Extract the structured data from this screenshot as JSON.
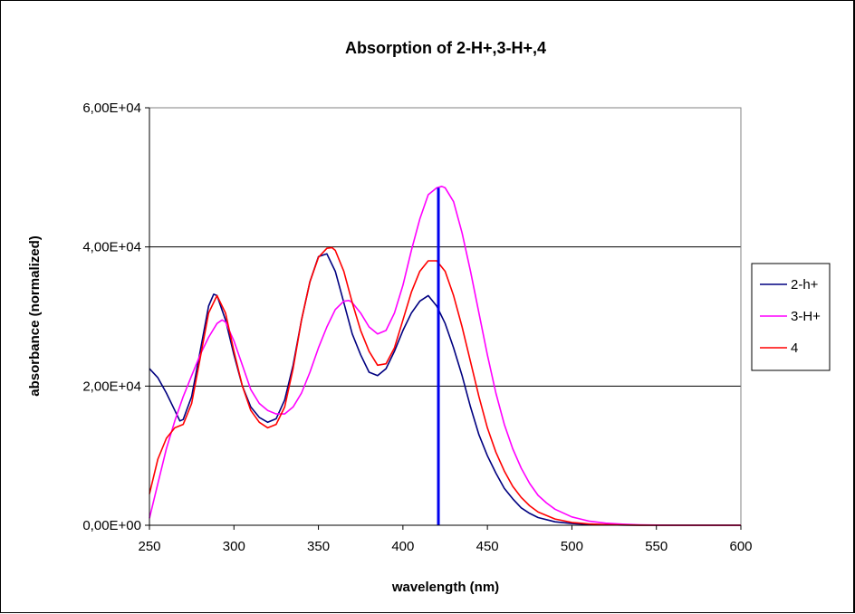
{
  "chart_data": {
    "type": "line",
    "title": "Absorption of 2-H+,3-H+,4",
    "xlabel": "wavelength (nm)",
    "ylabel": "absorbance (normalized)",
    "xlim": [
      250,
      600
    ],
    "ylim": [
      0,
      60000
    ],
    "xticks": [
      250,
      300,
      350,
      400,
      450,
      500,
      550,
      600
    ],
    "xtick_labels": [
      "250",
      "300",
      "350",
      "400",
      "450",
      "500",
      "550",
      "600"
    ],
    "yticks": [
      0,
      20000,
      40000,
      60000
    ],
    "ytick_labels": [
      "0,00E+00",
      "2,00E+04",
      "4,00E+04",
      "6,00E+04"
    ],
    "grid": "horizontal",
    "legend_position": "right",
    "marker_line": {
      "x": 421,
      "y_top": 48500,
      "color": "#0000ee"
    },
    "series": [
      {
        "name": "2-h+",
        "color": "#000080",
        "x": [
          250,
          255,
          260,
          265,
          268,
          270,
          275,
          280,
          285,
          288,
          290,
          295,
          300,
          305,
          310,
          315,
          320,
          325,
          330,
          335,
          340,
          345,
          350,
          355,
          360,
          365,
          370,
          375,
          380,
          385,
          390,
          395,
          400,
          405,
          410,
          415,
          420,
          425,
          430,
          435,
          440,
          445,
          450,
          455,
          460,
          465,
          470,
          475,
          480,
          490,
          500,
          510,
          520,
          530,
          540,
          550,
          600
        ],
        "y": [
          22500,
          21200,
          19000,
          16500,
          15000,
          15200,
          18500,
          25000,
          31500,
          33200,
          33000,
          29500,
          24500,
          20000,
          17000,
          15500,
          14800,
          15300,
          18000,
          23000,
          29500,
          35000,
          38600,
          39000,
          36500,
          32000,
          27500,
          24500,
          22000,
          21500,
          22500,
          25000,
          28000,
          30500,
          32200,
          33000,
          31500,
          29000,
          25500,
          21500,
          17000,
          13000,
          10000,
          7500,
          5300,
          3800,
          2500,
          1700,
          1100,
          500,
          250,
          120,
          60,
          30,
          10,
          0,
          0
        ]
      },
      {
        "name": "3-H+",
        "color": "#ff00ff",
        "x": [
          250,
          255,
          260,
          265,
          270,
          275,
          280,
          285,
          290,
          293,
          295,
          300,
          305,
          310,
          315,
          320,
          325,
          330,
          335,
          340,
          345,
          350,
          355,
          360,
          365,
          368,
          370,
          375,
          380,
          385,
          390,
          395,
          400,
          405,
          410,
          415,
          420,
          423,
          425,
          430,
          435,
          440,
          445,
          450,
          455,
          460,
          465,
          470,
          475,
          480,
          485,
          490,
          500,
          510,
          520,
          530,
          540,
          550,
          560,
          600
        ],
        "y": [
          1000,
          6000,
          11000,
          15000,
          18500,
          21500,
          24500,
          27000,
          29000,
          29500,
          29200,
          26500,
          23000,
          19500,
          17500,
          16500,
          16000,
          16000,
          17000,
          19000,
          22000,
          25500,
          28500,
          31000,
          32200,
          32300,
          32000,
          30500,
          28500,
          27500,
          28000,
          30500,
          34500,
          39500,
          44000,
          47500,
          48500,
          48700,
          48500,
          46500,
          42000,
          36500,
          30500,
          24500,
          19000,
          14500,
          11000,
          8200,
          6000,
          4300,
          3200,
          2300,
          1200,
          600,
          300,
          150,
          60,
          20,
          0,
          0
        ]
      },
      {
        "name": "4",
        "color": "#ff0000",
        "x": [
          250,
          255,
          260,
          265,
          270,
          275,
          280,
          285,
          290,
          295,
          300,
          305,
          310,
          315,
          320,
          325,
          330,
          335,
          340,
          345,
          350,
          355,
          358,
          360,
          365,
          370,
          375,
          380,
          385,
          390,
          395,
          400,
          405,
          410,
          415,
          420,
          425,
          430,
          435,
          440,
          445,
          450,
          455,
          460,
          465,
          470,
          475,
          480,
          490,
          500,
          510,
          520,
          530,
          540,
          550,
          600
        ],
        "y": [
          4500,
          9500,
          12500,
          14000,
          14500,
          17500,
          24000,
          30500,
          33000,
          30500,
          25000,
          20000,
          16500,
          14800,
          14000,
          14500,
          17000,
          22500,
          29500,
          35000,
          38500,
          39800,
          39900,
          39500,
          36500,
          32000,
          28000,
          25000,
          23000,
          23200,
          25500,
          29500,
          33500,
          36500,
          38000,
          38000,
          36500,
          33000,
          28500,
          23500,
          18500,
          14000,
          10500,
          7800,
          5600,
          4000,
          2800,
          1900,
          900,
          400,
          200,
          90,
          40,
          15,
          0,
          0
        ]
      }
    ]
  }
}
